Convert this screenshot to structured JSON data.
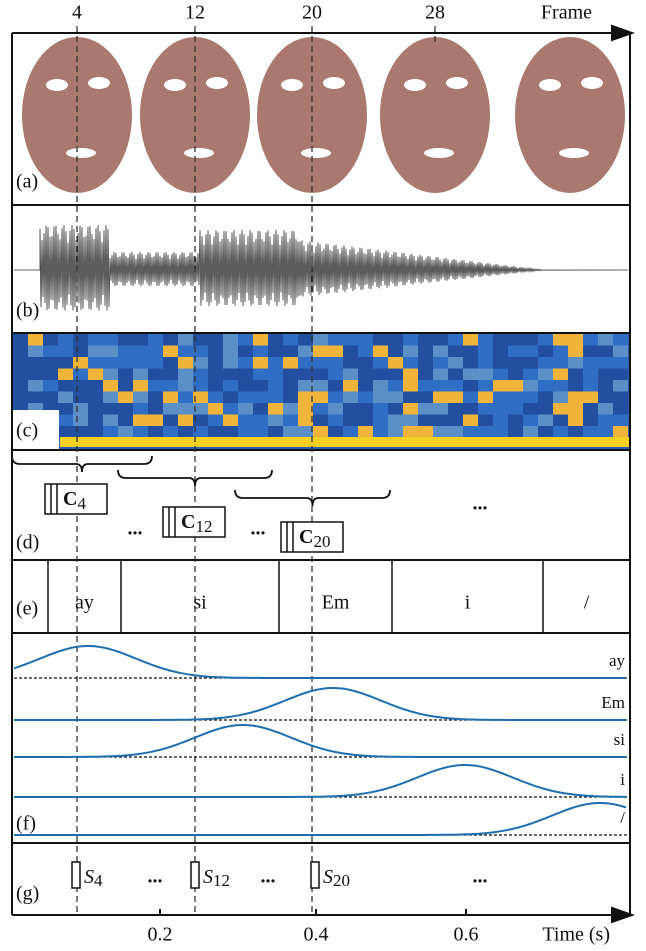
{
  "frame_axis": {
    "label": "Frame",
    "ticks": [
      "4",
      "12",
      "20",
      "28"
    ]
  },
  "time_axis": {
    "label": "Time (s)",
    "ticks": [
      "0.2",
      "0.4",
      "0.6"
    ]
  },
  "panels": [
    "(a)",
    "(b)",
    "(c)",
    "(d)",
    "(e)",
    "(f)",
    "(g)"
  ],
  "windows": [
    {
      "symbol": "C",
      "sub": "4"
    },
    {
      "symbol": "C",
      "sub": "12"
    },
    {
      "symbol": "C",
      "sub": "20"
    }
  ],
  "window_ellipses": [
    "...",
    "...",
    "..."
  ],
  "phonemes": [
    "ay",
    "si",
    "Em",
    "i",
    "/"
  ],
  "curves": [
    "ay",
    "Em",
    "si",
    "i",
    "/"
  ],
  "outputs": [
    {
      "symbol": "S",
      "sub": "4"
    },
    {
      "symbol": "S",
      "sub": "12"
    },
    {
      "symbol": "S",
      "sub": "20"
    }
  ],
  "output_ellipses": [
    "...",
    "...",
    "..."
  ]
}
